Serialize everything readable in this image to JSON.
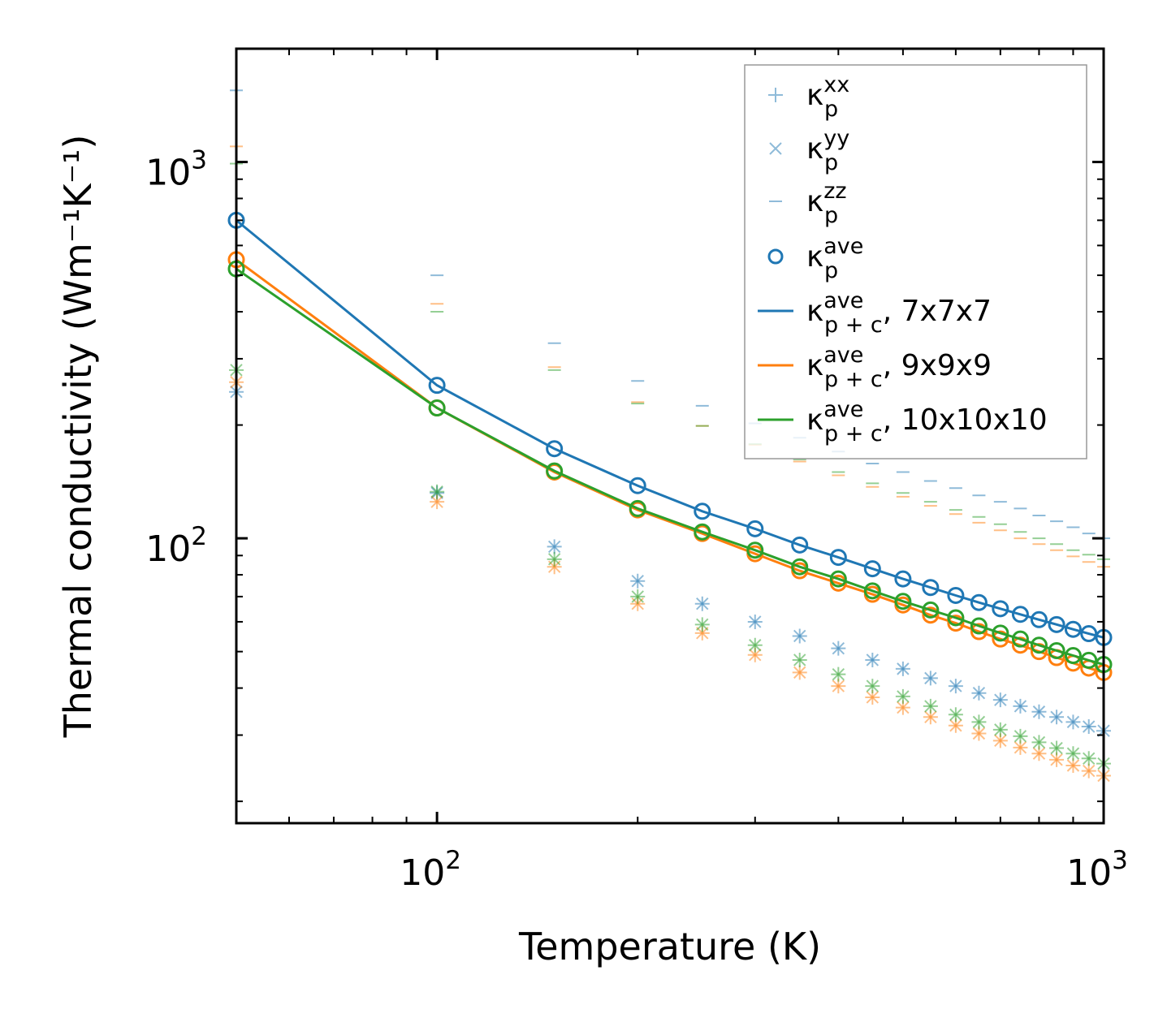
{
  "chart_data": {
    "type": "line",
    "title": "",
    "xlabel": "Temperature (K)",
    "ylabel": "Thermal conductivity (Wm⁻¹K⁻¹)",
    "xscale": "log",
    "yscale": "log",
    "xlim": [
      50,
      1000
    ],
    "ylim": [
      17.5,
      2000
    ],
    "x_ticks": [
      {
        "base": "10",
        "exp": "2"
      },
      {
        "base": "10",
        "exp": "3"
      }
    ],
    "y_ticks": [
      {
        "base": "10",
        "exp": "2"
      },
      {
        "base": "10",
        "exp": "3"
      }
    ],
    "x": [
      50,
      100,
      150,
      200,
      250,
      300,
      350,
      400,
      450,
      500,
      550,
      600,
      650,
      700,
      750,
      800,
      850,
      900,
      950,
      1000
    ],
    "colors": {
      "blue": "#1f77b4",
      "orange": "#ff7f0e",
      "green": "#2ca02c"
    },
    "series": [
      {
        "name": "7x7x7",
        "color": "#1f77b4",
        "ave": [
          700,
          255,
          173,
          138,
          118,
          106,
          96,
          89,
          83,
          78,
          74,
          70.5,
          67.5,
          65,
          62.8,
          60.8,
          59,
          57.3,
          55.8,
          54.5
        ],
        "xx": [
          245,
          132,
          95,
          77,
          67,
          60,
          55,
          51,
          47.5,
          45,
          42.5,
          40.5,
          38.8,
          37.2,
          35.8,
          34.6,
          33.5,
          32.5,
          31.6,
          30.8
        ],
        "yy": [
          245,
          132,
          95,
          77,
          67,
          60,
          55,
          51,
          47.5,
          45,
          42.5,
          40.5,
          38.8,
          37.2,
          35.8,
          34.6,
          33.5,
          32.5,
          31.6,
          30.8
        ],
        "zz": [
          1550,
          500,
          330,
          262,
          225,
          202,
          185,
          170,
          158,
          150,
          142,
          136,
          130,
          125,
          120,
          115,
          111,
          107,
          103,
          100
        ]
      },
      {
        "name": "9x9x9",
        "color": "#ff7f0e",
        "ave": [
          550,
          222,
          150,
          119,
          103,
          91,
          82,
          76,
          71,
          66.5,
          62.5,
          59.5,
          56.5,
          54,
          52,
          50,
          48.2,
          46.6,
          45.2,
          44
        ],
        "xx": [
          260,
          125,
          84,
          67,
          56,
          49,
          44,
          40.5,
          37.8,
          35.5,
          33.5,
          31.8,
          30.3,
          29,
          27.8,
          26.8,
          25.8,
          24.9,
          24.1,
          23.4
        ],
        "yy": [
          260,
          125,
          84,
          67,
          56,
          49,
          44,
          40.5,
          37.8,
          35.5,
          33.5,
          31.8,
          30.3,
          29,
          27.8,
          26.8,
          25.8,
          24.9,
          24.1,
          23.4
        ],
        "zz": [
          1100,
          420,
          285,
          230,
          199,
          177,
          160,
          147,
          137,
          129,
          122,
          116,
          110,
          105,
          100,
          96.5,
          93,
          89.5,
          86.5,
          84
        ]
      },
      {
        "name": "10x10x10",
        "color": "#2ca02c",
        "ave": [
          520,
          222,
          151,
          120,
          104,
          93,
          84,
          78,
          72.5,
          68,
          64.5,
          61.5,
          58.5,
          56,
          54,
          52,
          50.3,
          48.8,
          47.4,
          46.2
        ],
        "xx": [
          280,
          133,
          88,
          70,
          59,
          52,
          47.5,
          43.5,
          40.5,
          38,
          35.8,
          34,
          32.5,
          31,
          29.8,
          28.7,
          27.7,
          26.8,
          26,
          25.2
        ],
        "yy": [
          280,
          133,
          88,
          70,
          59,
          52,
          47.5,
          43.5,
          40.5,
          38,
          35.8,
          34,
          32.5,
          31,
          29.8,
          28.7,
          27.7,
          26.8,
          26,
          25.2
        ],
        "zz": [
          990,
          400,
          280,
          228,
          199,
          178,
          162,
          150,
          140,
          132,
          125,
          119,
          114,
          109,
          104,
          100,
          96.5,
          93,
          90.5,
          88
        ]
      }
    ],
    "legend": {
      "position": "upper-right",
      "entries": [
        {
          "symbol": "κ",
          "sub": "p",
          "sup": "xx",
          "suffix": ""
        },
        {
          "symbol": "κ",
          "sub": "p",
          "sup": "yy",
          "suffix": ""
        },
        {
          "symbol": "κ",
          "sub": "p",
          "sup": "zz",
          "suffix": ""
        },
        {
          "symbol": "κ",
          "sub": "p",
          "sup": "ave",
          "suffix": ""
        },
        {
          "symbol": "κ",
          "sub": "p + c",
          "sup": "ave",
          "suffix": ", 7x7x7"
        },
        {
          "symbol": "κ",
          "sub": "p + c",
          "sup": "ave",
          "suffix": ", 9x9x9"
        },
        {
          "symbol": "κ",
          "sub": "p + c",
          "sup": "ave",
          "suffix": ", 10x10x10"
        }
      ]
    }
  }
}
